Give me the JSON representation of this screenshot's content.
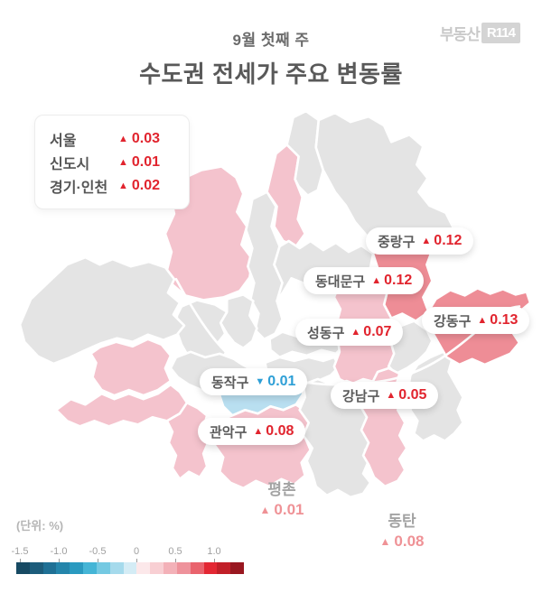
{
  "header": {
    "subtitle": "9월 첫째 주",
    "title": "수도권 전세가 주요 변동률",
    "logo": {
      "brand": "부동산",
      "badge": "R114"
    }
  },
  "summary": {
    "rows": [
      {
        "name": "서울",
        "arrow": "▲",
        "value": "0.03"
      },
      {
        "name": "신도시",
        "arrow": "▲",
        "value": "0.01"
      },
      {
        "name": "경기·인천",
        "arrow": "▲",
        "value": "0.02"
      }
    ]
  },
  "map": {
    "labels": [
      {
        "id": "jungnang",
        "name": "중랑구",
        "arrow": "▲",
        "value": "0.12",
        "direction": "up"
      },
      {
        "id": "dongdaemun",
        "name": "동대문구",
        "arrow": "▲",
        "value": "0.12",
        "direction": "up"
      },
      {
        "id": "gangdong",
        "name": "강동구",
        "arrow": "▲",
        "value": "0.13",
        "direction": "up"
      },
      {
        "id": "seongdong",
        "name": "성동구",
        "arrow": "▲",
        "value": "0.07",
        "direction": "up"
      },
      {
        "id": "dongjak",
        "name": "동작구",
        "arrow": "▼",
        "value": "0.01",
        "direction": "down"
      },
      {
        "id": "gangnam",
        "name": "강남구",
        "arrow": "▲",
        "value": "0.05",
        "direction": "up"
      },
      {
        "id": "gwanak",
        "name": "관악구",
        "arrow": "▲",
        "value": "0.08",
        "direction": "up"
      }
    ],
    "annotations": [
      {
        "name": "평촌",
        "arrow": "▲",
        "value": "0.01"
      },
      {
        "name": "동탄",
        "arrow": "▲",
        "value": "0.08"
      }
    ],
    "region_colors": {
      "none": "#e4e4e4",
      "rise_low": "#f4c3cd",
      "rise_high": "#ee8d96",
      "fall": "#b9dff0"
    },
    "district_fills": {
      "gangseo": "none",
      "yangcheon": "rise_low",
      "guro": "rise_low",
      "geumcheon": "rise_low",
      "yeongdeungpo": "none",
      "dongjak": "fall",
      "gwanak": "rise_low",
      "seocho": "none",
      "gangnam": "rise_low",
      "songpa": "none",
      "gangdong": "rise_high",
      "mapo": "none",
      "seodaemun": "none",
      "eunpyeong": "rise_low",
      "jongno": "none",
      "jung": "none",
      "yongsan": "none",
      "seongdong": "rise_low",
      "gwangjin": "none",
      "dongdaemun": "rise_low",
      "jungnang": "rise_high",
      "seongbuk": "none",
      "gangbuk": "rise_low",
      "dobong": "none",
      "nowon": "none"
    }
  },
  "scale": {
    "unit_label": "(단위:  %)",
    "ticks": [
      "-1.5",
      "-1.0",
      "-0.5",
      "0",
      "0.5",
      "1.0"
    ],
    "tick_offsets": [
      4,
      47,
      90,
      133,
      176,
      219
    ],
    "segments": [
      "#174a63",
      "#1c5c7b",
      "#1f7095",
      "#2485ab",
      "#2a9ac0",
      "#45b5d6",
      "#74c9e2",
      "#a5daec",
      "#d4ecf5",
      "#fce8ea",
      "#f8cfd3",
      "#f3b1b8",
      "#ee929b",
      "#e9636d",
      "#e32733",
      "#c11f28",
      "#991720"
    ]
  },
  "colors": {
    "up_red": "#e1242e",
    "down_blue": "#2e9fd6",
    "annotation_pink": "#ef9296"
  }
}
